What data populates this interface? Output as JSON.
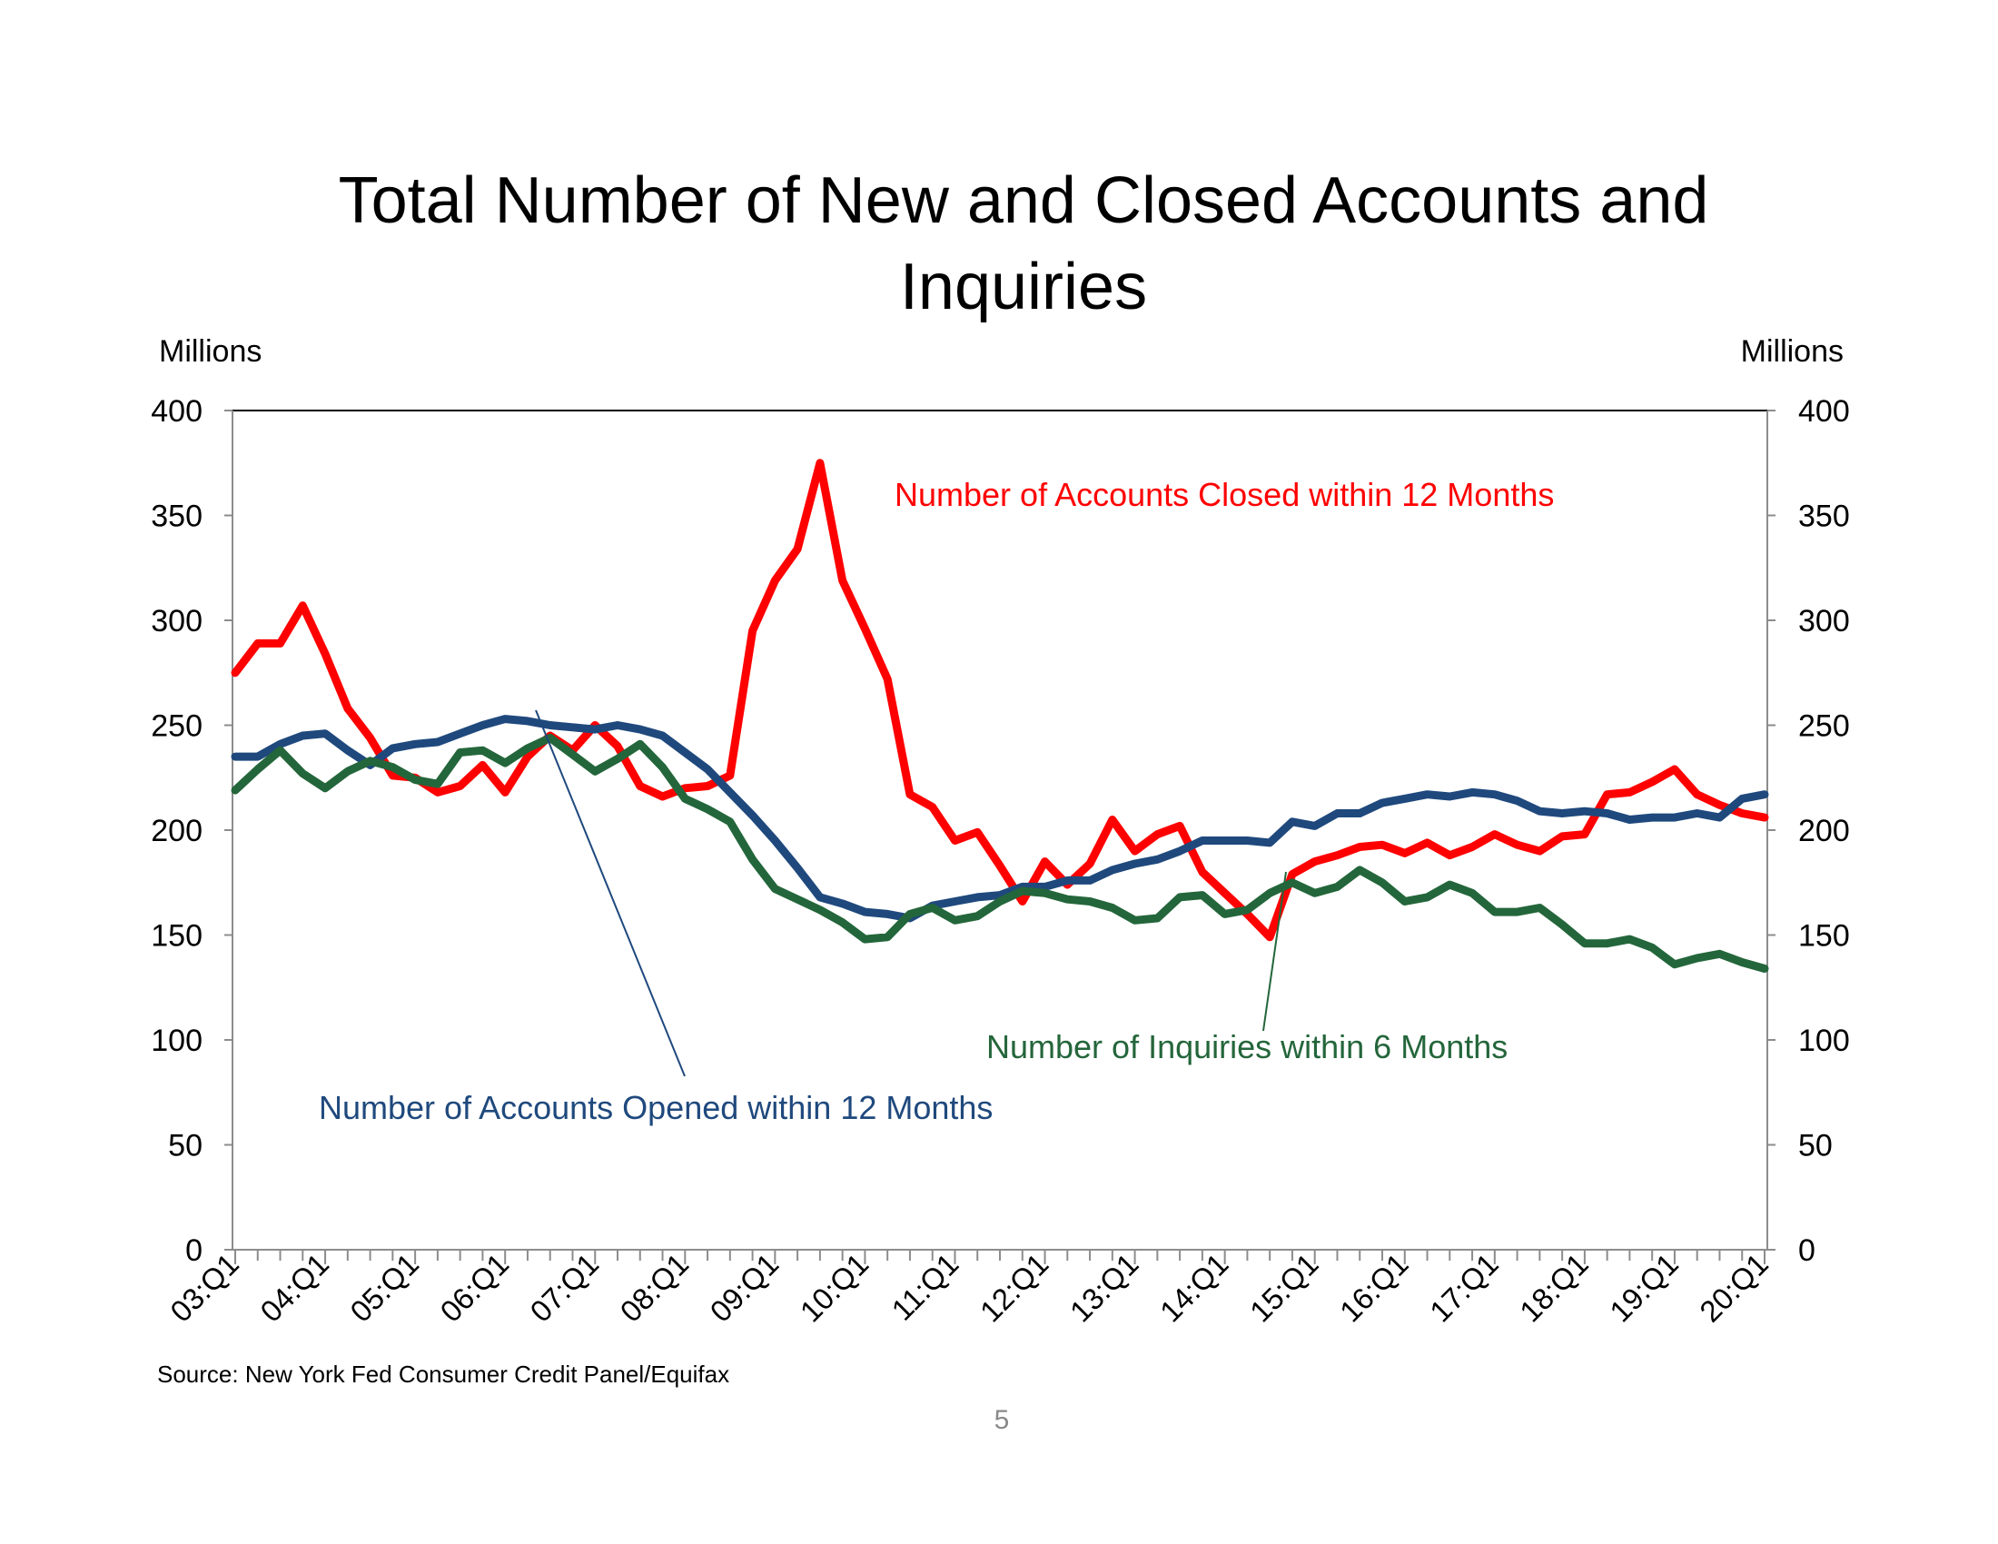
{
  "page_number": "5",
  "source": "Source: New York Fed Consumer Credit Panel/Equifax",
  "chart_data": {
    "type": "line",
    "title": "Total Number of New and Closed Accounts and Inquiries",
    "title_lines": [
      "Total Number of New and Closed Accounts and",
      "Inquiries"
    ],
    "ylabel_left": "Millions",
    "ylabel_right": "Millions",
    "ylim": [
      0,
      400
    ],
    "yticks": [
      0,
      50,
      100,
      150,
      200,
      250,
      300,
      350,
      400
    ],
    "xlabels": [
      "03:Q1",
      "04:Q1",
      "05:Q1",
      "06:Q1",
      "07:Q1",
      "08:Q1",
      "09:Q1",
      "10:Q1",
      "11:Q1",
      "12:Q1",
      "13:Q1",
      "14:Q1",
      "15:Q1",
      "16:Q1",
      "17:Q1",
      "18:Q1",
      "19:Q1",
      "20:Q1"
    ],
    "x_count": 69,
    "series": [
      {
        "name": "Number of Accounts Closed within 12 Months",
        "color": "#ff0000",
        "values": [
          275,
          289,
          289,
          307,
          284,
          258,
          244,
          226,
          225,
          218,
          221,
          231,
          218,
          235,
          245,
          238,
          250,
          240,
          221,
          216,
          220,
          221,
          226,
          295,
          319,
          334,
          375,
          319,
          296,
          272,
          217,
          211,
          195,
          199,
          183,
          166,
          185,
          174,
          184,
          205,
          190,
          198,
          202,
          180,
          170,
          160,
          149,
          179,
          185,
          188,
          192,
          193,
          189,
          194,
          188,
          192,
          198,
          193,
          190,
          197,
          198,
          217,
          218,
          223,
          229,
          217,
          212,
          208,
          206
        ]
      },
      {
        "name": "Number of Accounts Opened within 12 Months",
        "color": "#1f497d",
        "values": [
          235,
          235,
          241,
          245,
          246,
          238,
          231,
          239,
          241,
          242,
          246,
          250,
          253,
          252,
          250,
          249,
          248,
          250,
          248,
          245,
          237,
          229,
          218,
          207,
          195,
          182,
          168,
          165,
          161,
          160,
          158,
          164,
          166,
          168,
          169,
          173,
          173,
          176,
          176,
          181,
          184,
          186,
          190,
          195,
          195,
          195,
          194,
          204,
          202,
          208,
          208,
          213,
          215,
          217,
          216,
          218,
          217,
          214,
          209,
          208,
          209,
          208,
          205,
          206,
          206,
          208,
          206,
          215,
          217
        ]
      },
      {
        "name": "Number of Inquiries within 6 Months",
        "color": "#24663b",
        "values": [
          219,
          229,
          238,
          227,
          220,
          228,
          233,
          230,
          224,
          222,
          237,
          238,
          232,
          239,
          244,
          236,
          228,
          234,
          241,
          230,
          215,
          210,
          204,
          186,
          172,
          167,
          162,
          156,
          148,
          149,
          160,
          163,
          157,
          159,
          166,
          171,
          170,
          167,
          166,
          163,
          157,
          158,
          168,
          169,
          160,
          162,
          170,
          175,
          170,
          173,
          181,
          175,
          166,
          168,
          174,
          170,
          161,
          161,
          163,
          155,
          146,
          146,
          148,
          144,
          136,
          139,
          141,
          137,
          134
        ]
      }
    ],
    "annotations": [
      {
        "text": "Number of Accounts Closed within 12 Months",
        "color": "#ff0000"
      },
      {
        "text": "Number of Accounts Opened within 12 Months",
        "color": "#1f497d"
      },
      {
        "text": "Number of Inquiries within 6 Months",
        "color": "#24663b"
      }
    ]
  }
}
